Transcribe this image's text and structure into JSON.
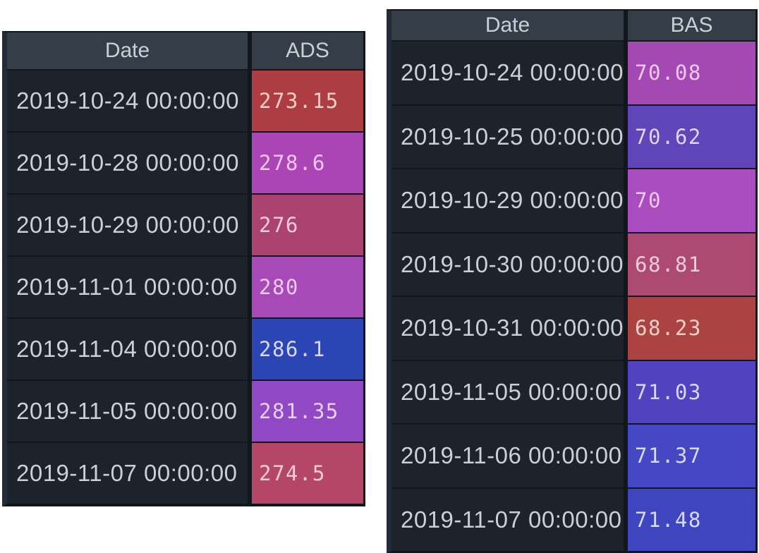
{
  "page": {
    "background": "#ffffff"
  },
  "theme": {
    "header_bg": "#353d47",
    "header_text": "#c9cfd6",
    "date_cell_bg": "#1d232b",
    "date_text": "#cbd0d5",
    "divider": "#12171e",
    "outer_border": "#11161d",
    "outer_border_left": "#232b34"
  },
  "tables": [
    {
      "name": "ads",
      "columns": [
        "Date",
        "ADS"
      ],
      "rows": [
        {
          "date": "2019-10-24 00:00:00",
          "value": "273.15",
          "bg": "#ad3d43",
          "fg": "#f1cfc9"
        },
        {
          "date": "2019-10-28 00:00:00",
          "value": "278.6",
          "bg": "#ab45b5",
          "fg": "#f0c8ec"
        },
        {
          "date": "2019-10-29 00:00:00",
          "value": "276",
          "bg": "#ab4370",
          "fg": "#f1cbd9"
        },
        {
          "date": "2019-11-01 00:00:00",
          "value": "280",
          "bg": "#a74ab8",
          "fg": "#efc9ee"
        },
        {
          "date": "2019-11-04 00:00:00",
          "value": "286.1",
          "bg": "#2c45b5",
          "fg": "#d7d9f4"
        },
        {
          "date": "2019-11-05 00:00:00",
          "value": "281.35",
          "bg": "#9148c4",
          "fg": "#e5d1f3"
        },
        {
          "date": "2019-11-07 00:00:00",
          "value": "274.5",
          "bg": "#b44768",
          "fg": "#f2ccd6"
        }
      ]
    },
    {
      "name": "bas",
      "columns": [
        "Date",
        "BAS"
      ],
      "rows": [
        {
          "date": "2019-10-24 00:00:00",
          "value": "70.08",
          "bg": "#a449b4",
          "fg": "#efc9ee"
        },
        {
          "date": "2019-10-25 00:00:00",
          "value": "70.62",
          "bg": "#5f45b8",
          "fg": "#dcd6f3"
        },
        {
          "date": "2019-10-29 00:00:00",
          "value": "70",
          "bg": "#a84cc0",
          "fg": "#efcaf0"
        },
        {
          "date": "2019-10-30 00:00:00",
          "value": "68.81",
          "bg": "#ad4a72",
          "fg": "#f1ccd8"
        },
        {
          "date": "2019-10-31 00:00:00",
          "value": "68.23",
          "bg": "#ac4343",
          "fg": "#f2d0ca"
        },
        {
          "date": "2019-11-05 00:00:00",
          "value": "71.03",
          "bg": "#4f43c0",
          "fg": "#dad6f3"
        },
        {
          "date": "2019-11-06 00:00:00",
          "value": "71.37",
          "bg": "#4448c5",
          "fg": "#d8d9f5"
        },
        {
          "date": "2019-11-07 00:00:00",
          "value": "71.48",
          "bg": "#3f45bf",
          "fg": "#d8d9f5"
        }
      ]
    }
  ],
  "chart_data": [
    {
      "type": "table",
      "title": "ADS",
      "columns": [
        "Date",
        "ADS"
      ],
      "x": [
        "2019-10-24 00:00:00",
        "2019-10-28 00:00:00",
        "2019-10-29 00:00:00",
        "2019-11-01 00:00:00",
        "2019-11-04 00:00:00",
        "2019-11-05 00:00:00",
        "2019-11-07 00:00:00"
      ],
      "values": [
        273.15,
        278.6,
        276,
        280,
        286.1,
        281.35,
        274.5
      ],
      "value_range": [
        273.15,
        286.1
      ],
      "color_encoding": "cell background gradient: red = low, magenta/purple = mid, blue = high"
    },
    {
      "type": "table",
      "title": "BAS",
      "columns": [
        "Date",
        "BAS"
      ],
      "x": [
        "2019-10-24 00:00:00",
        "2019-10-25 00:00:00",
        "2019-10-29 00:00:00",
        "2019-10-30 00:00:00",
        "2019-10-31 00:00:00",
        "2019-11-05 00:00:00",
        "2019-11-06 00:00:00",
        "2019-11-07 00:00:00"
      ],
      "values": [
        70.08,
        70.62,
        70,
        68.81,
        68.23,
        71.03,
        71.37,
        71.48
      ],
      "value_range": [
        68.23,
        71.48
      ],
      "color_encoding": "cell background gradient: red = low, magenta/purple = mid, blue = high"
    }
  ]
}
